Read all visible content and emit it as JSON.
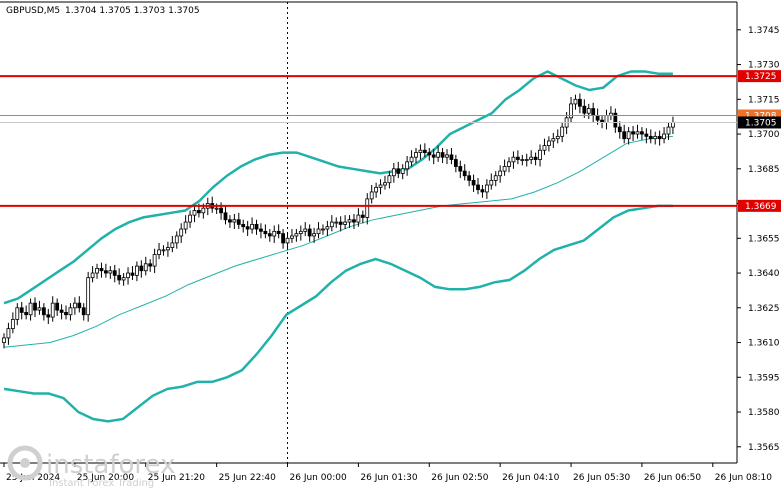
{
  "header": {
    "symbol": "GBPUSD,M5",
    "ohlc": "1.3704 1.3705 1.3703 1.3705"
  },
  "watermark": {
    "brand": "instaforex",
    "tagline": "Instant Forex Trading"
  },
  "chart_data": {
    "type": "candlestick",
    "symbol": "GBPUSD",
    "timeframe": "M5",
    "ylim": [
      1.3558,
      1.3757
    ],
    "y_ticks": [
      "1.3745",
      "1.3730",
      "1.3715",
      "1.3700",
      "1.3685",
      "1.3670",
      "1.3655",
      "1.3640",
      "1.3625",
      "1.3610",
      "1.3595",
      "1.3580",
      "1.3565"
    ],
    "x_ticks": [
      "25 Jun 2024",
      "25 Jun 20:00",
      "25 Jun 21:20",
      "25 Jun 22:40",
      "26 Jun 00:00",
      "26 Jun 01:30",
      "26 Jun 02:50",
      "26 Jun 04:10",
      "26 Jun 05:30",
      "26 Jun 06:50",
      "26 Jun 08:10"
    ],
    "x_tick_index": [
      0,
      16,
      32,
      48,
      64,
      80,
      96,
      112,
      128,
      144,
      160
    ],
    "session_separator_index": 64,
    "closes": [
      1.3612,
      1.3616,
      1.362,
      1.3625,
      1.3623,
      1.3622,
      1.3627,
      1.3624,
      1.3625,
      1.3622,
      1.3621,
      1.3627,
      1.3624,
      1.3623,
      1.3622,
      1.3625,
      1.3627,
      1.3625,
      1.3622,
      1.3638,
      1.364,
      1.3642,
      1.3641,
      1.364,
      1.3641,
      1.3639,
      1.3637,
      1.3638,
      1.364,
      1.3639,
      1.3643,
      1.3641,
      1.3644,
      1.3643,
      1.3648,
      1.365,
      1.365,
      1.3651,
      1.3653,
      1.3656,
      1.3659,
      1.3662,
      1.3665,
      1.3667,
      1.3666,
      1.3668,
      1.367,
      1.3668,
      1.3668,
      1.3666,
      1.3663,
      1.3662,
      1.3663,
      1.3661,
      1.366,
      1.3659,
      1.3661,
      1.3659,
      1.3658,
      1.3657,
      1.3656,
      1.3658,
      1.3657,
      1.3653,
      1.3655,
      1.3656,
      1.3657,
      1.3658,
      1.3659,
      1.3656,
      1.3657,
      1.3659,
      1.3659,
      1.366,
      1.3662,
      1.3662,
      1.3661,
      1.3662,
      1.3663,
      1.3662,
      1.3665,
      1.3664,
      1.3672,
      1.3675,
      1.3677,
      1.3678,
      1.3679,
      1.3682,
      1.3685,
      1.3683,
      1.3685,
      1.3688,
      1.369,
      1.3692,
      1.3693,
      1.3692,
      1.3691,
      1.369,
      1.3692,
      1.369,
      1.3691,
      1.3689,
      1.3686,
      1.3684,
      1.3682,
      1.368,
      1.3678,
      1.3676,
      1.3675,
      1.3678,
      1.368,
      1.3682,
      1.3684,
      1.3686,
      1.3688,
      1.369,
      1.3689,
      1.3689,
      1.3689,
      1.369,
      1.3689,
      1.3693,
      1.3695,
      1.3697,
      1.3698,
      1.3699,
      1.3703,
      1.3707,
      1.3713,
      1.3715,
      1.3712,
      1.3709,
      1.3711,
      1.3708,
      1.3706,
      1.3705,
      1.3708,
      1.3709,
      1.3703,
      1.3701,
      1.3698,
      1.3701,
      1.37,
      1.3701,
      1.37,
      1.3699,
      1.3698,
      1.3699,
      1.3698,
      1.37,
      1.3703,
      1.3705
    ],
    "levels": [
      {
        "label": "1.3725",
        "value": 1.3725,
        "color": "#e00000"
      },
      {
        "label": "1.3708",
        "value": 1.3708,
        "color": "#f07028"
      },
      {
        "label": "1.3669",
        "value": 1.3669,
        "color": "#e00000"
      }
    ],
    "current_price": {
      "label": "1.3705",
      "value": 1.3705
    },
    "bollinger_upper": [
      1.3627,
      1.3629,
      1.3633,
      1.3637,
      1.3641,
      1.3645,
      1.365,
      1.3655,
      1.3659,
      1.3662,
      1.3664,
      1.3665,
      1.3666,
      1.3667,
      1.3671,
      1.3677,
      1.3682,
      1.3686,
      1.3689,
      1.3691,
      1.3692,
      1.3692,
      1.369,
      1.3688,
      1.3686,
      1.3685,
      1.3684,
      1.3683,
      1.3684,
      1.3685,
      1.3689,
      1.3694,
      1.37,
      1.3703,
      1.3706,
      1.3709,
      1.3715,
      1.3719,
      1.3724,
      1.3727,
      1.3724,
      1.3721,
      1.3719,
      1.372,
      1.3725,
      1.3727,
      1.3727,
      1.3726,
      1.3726
    ],
    "bollinger_middle": [
      1.3608,
      1.3609,
      1.361,
      1.3613,
      1.3617,
      1.3622,
      1.3626,
      1.363,
      1.3635,
      1.3639,
      1.3643,
      1.3646,
      1.3649,
      1.3652,
      1.3656,
      1.366,
      1.3663,
      1.3665,
      1.3667,
      1.3669,
      1.367,
      1.3671,
      1.3672,
      1.3675,
      1.3679,
      1.3684,
      1.369,
      1.3696,
      1.3698,
      1.3699
    ],
    "bollinger_lower": [
      1.359,
      1.3589,
      1.3588,
      1.3588,
      1.3586,
      1.358,
      1.3577,
      1.3576,
      1.3577,
      1.3582,
      1.3587,
      1.359,
      1.3591,
      1.3593,
      1.3593,
      1.3595,
      1.3598,
      1.3605,
      1.3613,
      1.3622,
      1.3626,
      1.363,
      1.3636,
      1.3641,
      1.3644,
      1.3646,
      1.3644,
      1.3641,
      1.3638,
      1.3634,
      1.3633,
      1.3633,
      1.3634,
      1.3636,
      1.3637,
      1.3641,
      1.3646,
      1.365,
      1.3652,
      1.3654,
      1.3659,
      1.3664,
      1.3667,
      1.3668,
      1.3669,
      1.3669
    ]
  }
}
